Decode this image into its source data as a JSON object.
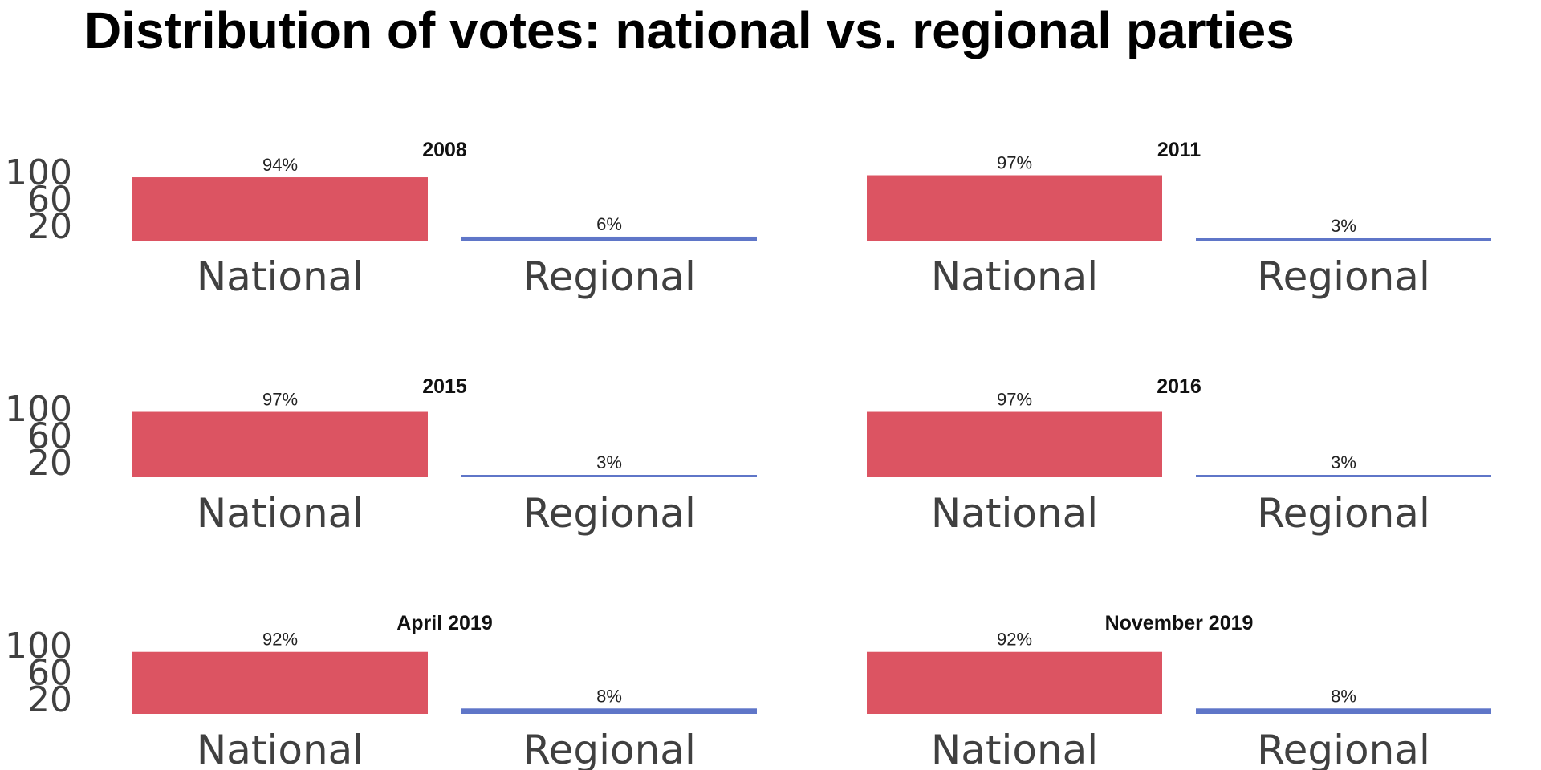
{
  "chart_data": {
    "type": "bar",
    "title": "Distribution of votes: national vs. regional parties",
    "categories": [
      "National",
      "Regional"
    ],
    "colors": {
      "National": "#dc5462",
      "Regional": "#5f76c8"
    },
    "yticks": [
      20,
      60,
      100
    ],
    "ylim": [
      0,
      100
    ],
    "grid": false,
    "legend": "none",
    "panels": [
      {
        "title": "2008",
        "values": [
          94,
          6
        ],
        "labels": [
          "94%",
          "6%"
        ]
      },
      {
        "title": "2011",
        "values": [
          97,
          3
        ],
        "labels": [
          "97%",
          "3%"
        ]
      },
      {
        "title": "2015",
        "values": [
          97,
          3
        ],
        "labels": [
          "97%",
          "3%"
        ]
      },
      {
        "title": "2016",
        "values": [
          97,
          3
        ],
        "labels": [
          "97%",
          "3%"
        ]
      },
      {
        "title": "April 2019",
        "values": [
          92,
          8
        ],
        "labels": [
          "92%",
          "8%"
        ]
      },
      {
        "title": "November 2019",
        "values": [
          92,
          8
        ],
        "labels": [
          "92%",
          "8%"
        ]
      }
    ]
  }
}
